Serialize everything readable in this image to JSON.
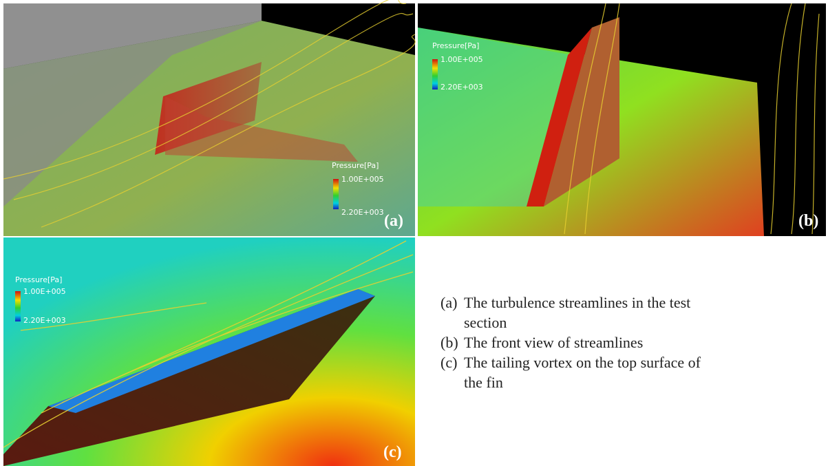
{
  "panels": [
    {
      "label": "(a)",
      "legend": {
        "title": "Pressure[Pa]",
        "max": "1.00E+005",
        "min": "2.20E+003"
      }
    },
    {
      "label": "(b)",
      "legend": {
        "title": "Pressure[Pa]",
        "max": "1.00E+005",
        "min": "2.20E+003"
      }
    },
    {
      "label": "(c)",
      "legend": {
        "title": "Pressure[Pa]",
        "max": "1.00E+005",
        "min": "2.20E+003"
      }
    }
  ],
  "caption": [
    {
      "marker": "(a)",
      "text": "The turbulence streamlines in the test section"
    },
    {
      "marker": "(b)",
      "text": "The front view of streamlines"
    },
    {
      "marker": "(c)",
      "text": "The tailing vortex on the top surface of the fin"
    }
  ]
}
